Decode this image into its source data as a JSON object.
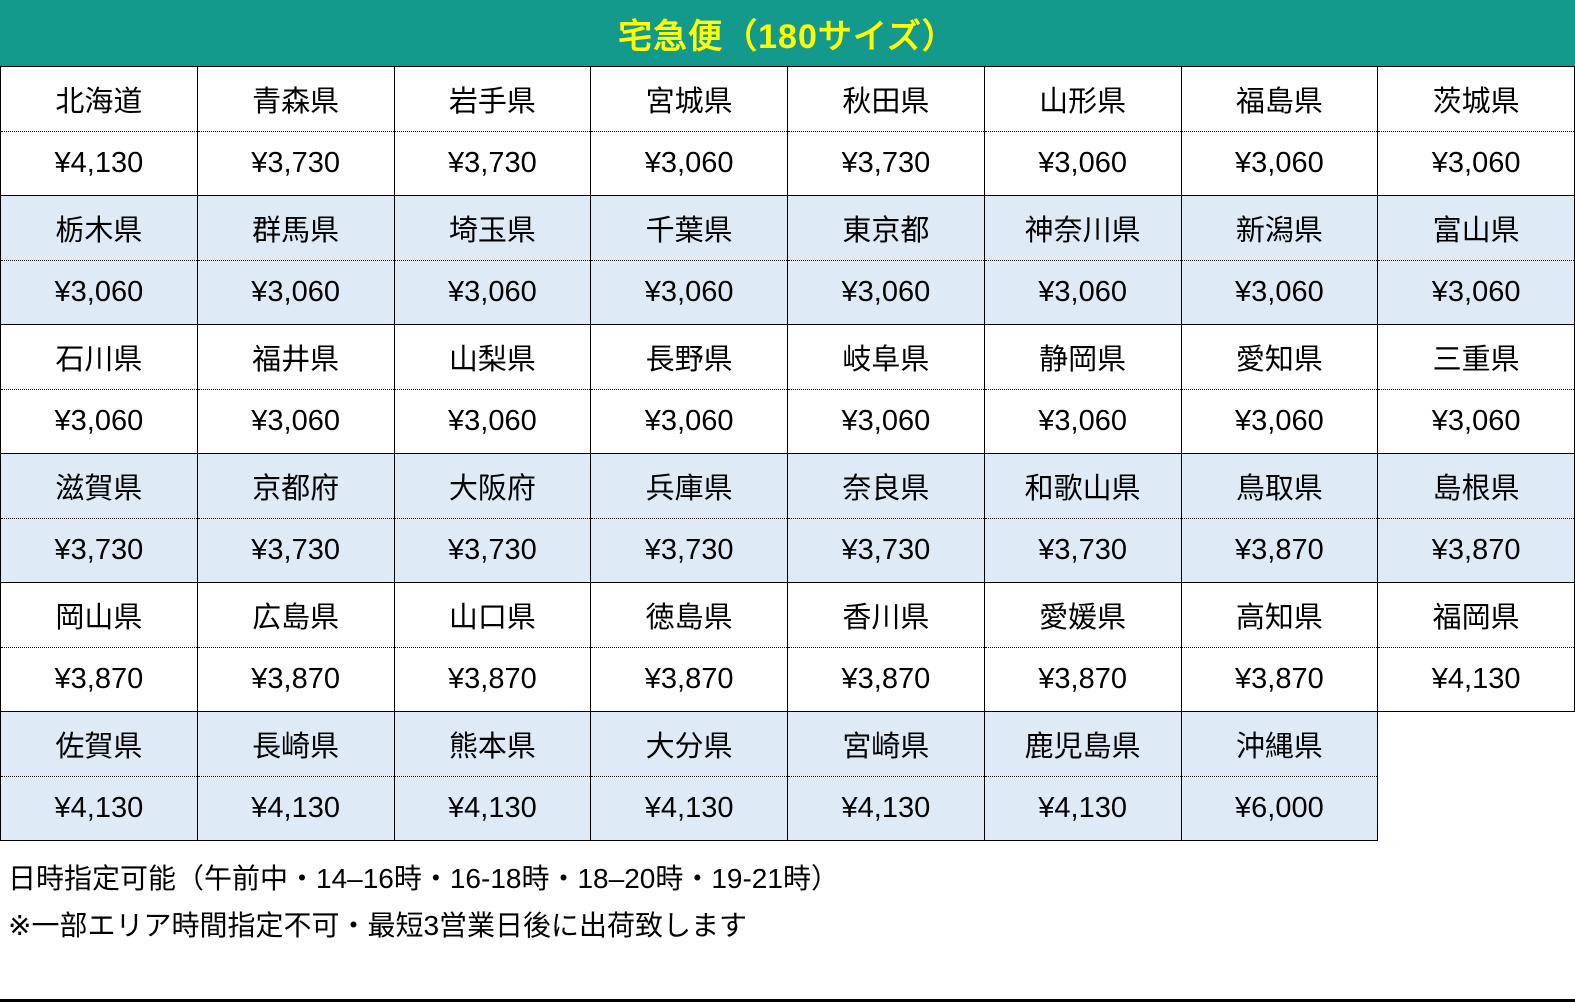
{
  "title": "宅急便（180サイズ）",
  "colors": {
    "header_bg": "#149a8c",
    "header_text": "#ffff00",
    "alt_row_bg": "#deebf7",
    "border": "#000000"
  },
  "table": {
    "groups": [
      {
        "shaded": false,
        "prefectures": [
          "北海道",
          "青森県",
          "岩手県",
          "宮城県",
          "秋田県",
          "山形県",
          "福島県",
          "茨城県"
        ],
        "prices": [
          "¥4,130",
          "¥3,730",
          "¥3,730",
          "¥3,060",
          "¥3,730",
          "¥3,060",
          "¥3,060",
          "¥3,060"
        ]
      },
      {
        "shaded": true,
        "prefectures": [
          "栃木県",
          "群馬県",
          "埼玉県",
          "千葉県",
          "東京都",
          "神奈川県",
          "新潟県",
          "富山県"
        ],
        "prices": [
          "¥3,060",
          "¥3,060",
          "¥3,060",
          "¥3,060",
          "¥3,060",
          "¥3,060",
          "¥3,060",
          "¥3,060"
        ]
      },
      {
        "shaded": false,
        "prefectures": [
          "石川県",
          "福井県",
          "山梨県",
          "長野県",
          "岐阜県",
          "静岡県",
          "愛知県",
          "三重県"
        ],
        "prices": [
          "¥3,060",
          "¥3,060",
          "¥3,060",
          "¥3,060",
          "¥3,060",
          "¥3,060",
          "¥3,060",
          "¥3,060"
        ]
      },
      {
        "shaded": true,
        "prefectures": [
          "滋賀県",
          "京都府",
          "大阪府",
          "兵庫県",
          "奈良県",
          "和歌山県",
          "鳥取県",
          "島根県"
        ],
        "prices": [
          "¥3,730",
          "¥3,730",
          "¥3,730",
          "¥3,730",
          "¥3,730",
          "¥3,730",
          "¥3,870",
          "¥3,870"
        ]
      },
      {
        "shaded": false,
        "prefectures": [
          "岡山県",
          "広島県",
          "山口県",
          "徳島県",
          "香川県",
          "愛媛県",
          "高知県",
          "福岡県"
        ],
        "prices": [
          "¥3,870",
          "¥3,870",
          "¥3,870",
          "¥3,870",
          "¥3,870",
          "¥3,870",
          "¥3,870",
          "¥4,130"
        ]
      },
      {
        "shaded": true,
        "prefectures": [
          "佐賀県",
          "長崎県",
          "熊本県",
          "大分県",
          "宮崎県",
          "鹿児島県",
          "沖縄県"
        ],
        "prices": [
          "¥4,130",
          "¥4,130",
          "¥4,130",
          "¥4,130",
          "¥4,130",
          "¥4,130",
          "¥6,000"
        ]
      }
    ]
  },
  "notes": [
    "日時指定可能（午前中・14–16時・16-18時・18–20時・19-21時）",
    "※一部エリア時間指定不可・最短3営業日後に出荷致します"
  ]
}
